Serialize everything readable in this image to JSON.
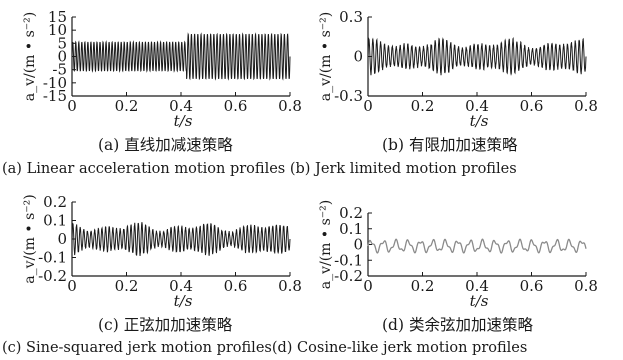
{
  "captions": {
    "a_cn": "(a) 直线加减速策略",
    "b_cn": "(b)  有限加加速策略",
    "c_cn": "(c) 正弦加加速策略",
    "d_cn": "(d) 类余弦加加速策略",
    "ab_en": "(a) Linear acceleration motion profiles (b) Jerk limited motion profiles",
    "cd_en": "(c) Sine-squared jerk motion profiles(d) Cosine-like jerk motion profiles"
  },
  "chart_data": [
    {
      "id": "a",
      "type": "line",
      "xlabel": "t/s",
      "ylabel": "a_v/(m • s⁻²)",
      "xlim": [
        0,
        0.8
      ],
      "ylim": [
        -15,
        15
      ],
      "xticks": [
        "0",
        "0.2",
        "0.4",
        "0.6",
        "0.8"
      ],
      "yticks": [
        "15",
        "10",
        "5",
        "0",
        "-5",
        "-10",
        "-15"
      ],
      "line_color": "#1a1a1a",
      "signal": [
        {
          "t_start": 0.0,
          "t_end": 0.42,
          "frequency_hz": 90,
          "amplitude": 5.5
        },
        {
          "t_start": 0.42,
          "t_end": 0.8,
          "frequency_hz": 85,
          "amplitude": 8.5
        }
      ]
    },
    {
      "id": "b",
      "type": "line",
      "xlabel": "t/s",
      "ylabel": "a_v/(m • s⁻²)",
      "xlim": [
        0,
        0.8
      ],
      "ylim": [
        -0.3,
        0.3
      ],
      "xticks": [
        "0",
        "0.2",
        "0.4",
        "0.6",
        "0.8"
      ],
      "yticks": [
        "0.3",
        "0",
        "-0.3"
      ],
      "line_color": "#1a1a1a",
      "signal": [
        {
          "t_start": 0.0,
          "t_end": 0.8,
          "frequency_hz": 70,
          "amplitude": 0.09,
          "irregular": true
        }
      ]
    },
    {
      "id": "c",
      "type": "line",
      "xlabel": "t/s",
      "ylabel": "a_v/(m • s⁻²)",
      "xlim": [
        0,
        0.8
      ],
      "ylim": [
        -0.2,
        0.2
      ],
      "xticks": [
        "0",
        "0.2",
        "0.4",
        "0.6",
        "0.8"
      ],
      "yticks": [
        "0.2",
        "0.1",
        "0",
        "-0.1",
        "-0.2"
      ],
      "line_color": "#1a1a1a",
      "signal": [
        {
          "t_start": 0.0,
          "t_end": 0.8,
          "frequency_hz": 75,
          "amplitude": 0.06,
          "irregular": true
        }
      ]
    },
    {
      "id": "d",
      "type": "line",
      "xlabel": "t/s",
      "ylabel": "a_v/(m • s⁻²)",
      "xlim": [
        0,
        0.8
      ],
      "ylim": [
        -0.2,
        0.2
      ],
      "xticks": [
        "0",
        "0.2",
        "0.4",
        "0.6",
        "0.8"
      ],
      "yticks": [
        "0.2",
        "0.1",
        "0",
        "-0.1",
        "-0.2"
      ],
      "line_color": "#8a8a8a",
      "signal": [
        {
          "t_start": 0.0,
          "t_end": 0.8,
          "frequency_hz": 22,
          "amplitude": 0.035
        }
      ]
    }
  ]
}
